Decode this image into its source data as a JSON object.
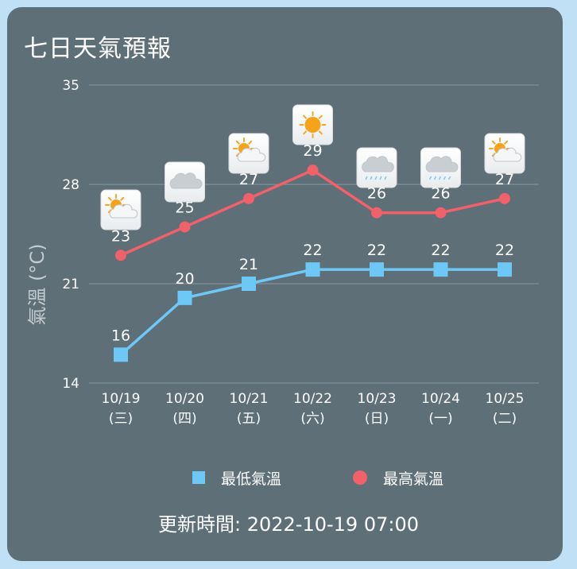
{
  "title": "七日天氣預報",
  "updated_label": "更新時間: 2022-10-19 07:00",
  "colors": {
    "background": "#5e6f78",
    "page": "#bfe0f5",
    "min_series": "#6ec8f5",
    "max_series": "#f0616a",
    "grid": "#8a999f",
    "text": "#ffffff",
    "axis_title": "#c4ccd0"
  },
  "chart_data": {
    "type": "line",
    "ylabel": "氣溫 (°C)",
    "ylim": [
      14,
      35
    ],
    "yticks": [
      14,
      21,
      28,
      35
    ],
    "grid": true,
    "legend_position": "bottom-center",
    "categories": [
      [
        "10/19",
        "(三)"
      ],
      [
        "10/20",
        "(四)"
      ],
      [
        "10/21",
        "(五)"
      ],
      [
        "10/22",
        "(六)"
      ],
      [
        "10/23",
        "(日)"
      ],
      [
        "10/24",
        "(一)"
      ],
      [
        "10/25",
        "(二)"
      ]
    ],
    "weather_icons": [
      "partly-cloudy-icon",
      "cloudy-icon",
      "partly-cloudy-icon",
      "sunny-icon",
      "rain-icon",
      "rain-icon",
      "partly-cloudy-icon"
    ],
    "series": [
      {
        "name": "最低氣溫",
        "marker": "square",
        "color": "#6ec8f5",
        "values": [
          16,
          20,
          21,
          22,
          22,
          22,
          22
        ]
      },
      {
        "name": "最高氣溫",
        "marker": "circle",
        "color": "#f0616a",
        "values": [
          23,
          25,
          27,
          29,
          26,
          26,
          27
        ]
      }
    ]
  }
}
